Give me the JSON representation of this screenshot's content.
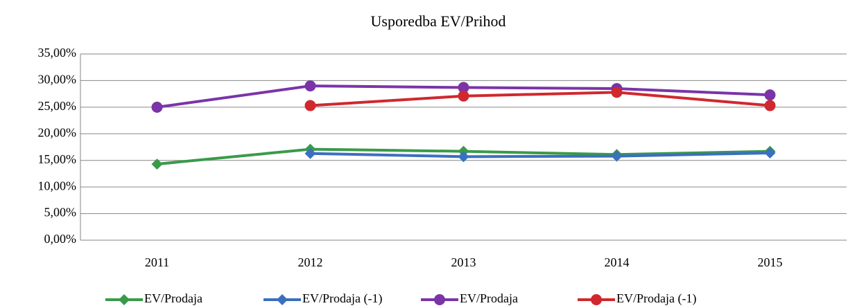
{
  "chart_data": {
    "type": "line",
    "title": "Usporedba EV/Prihod",
    "categories": [
      "2011",
      "2012",
      "2013",
      "2014",
      "2015"
    ],
    "series": [
      {
        "name": "EV/Prodaja",
        "color": "#3a9a4a",
        "marker": "diamond",
        "values": [
          14.3,
          17.1,
          16.7,
          16.1,
          16.7
        ]
      },
      {
        "name": "EV/Prodaja (-1)",
        "color": "#3b6fc0",
        "marker": "diamond",
        "values": [
          null,
          16.3,
          15.7,
          15.8,
          16.4
        ]
      },
      {
        "name": "EV/Prodaja",
        "color": "#7a34a8",
        "marker": "circle",
        "values": [
          25.0,
          29.0,
          28.7,
          28.5,
          27.3
        ]
      },
      {
        "name": "EV/Prodaja (-1)",
        "color": "#d0282e",
        "marker": "circle",
        "values": [
          null,
          25.3,
          27.1,
          27.8,
          25.3
        ]
      }
    ],
    "ylim": [
      0,
      35
    ],
    "yticks": [
      {
        "value": 0,
        "label": "0,00%"
      },
      {
        "value": 5,
        "label": "5,00%"
      },
      {
        "value": 10,
        "label": "10,00%"
      },
      {
        "value": 15,
        "label": "15,00%"
      },
      {
        "value": 20,
        "label": "20,00%"
      },
      {
        "value": 25,
        "label": "25,00%"
      },
      {
        "value": 30,
        "label": "30,00%"
      },
      {
        "value": 35,
        "label": "35,00%"
      }
    ],
    "grid": true,
    "legend": "bottom"
  }
}
